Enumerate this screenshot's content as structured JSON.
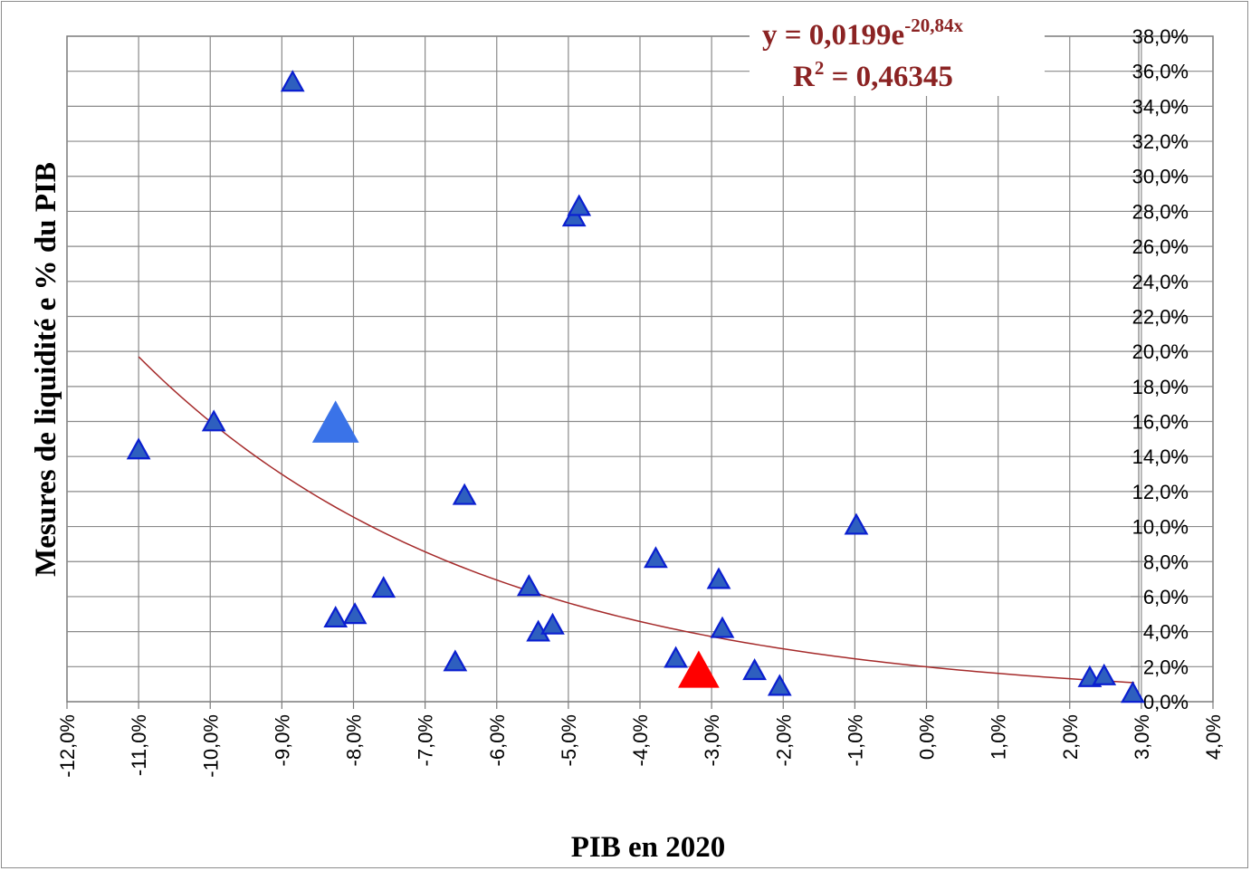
{
  "chart_data": {
    "type": "scatter",
    "xlabel": "PIB en 2020",
    "ylabel": "Mesures de liquidité e % du PIB",
    "xlim": [
      -0.12,
      0.04
    ],
    "ylim": [
      0,
      0.38
    ],
    "x_ticks": [
      "-12,0%",
      "-11,0%",
      "-10,0%",
      "-9,0%",
      "-8,0%",
      "-7,0%",
      "-6,0%",
      "-5,0%",
      "-4,0%",
      "-3,0%",
      "-2,0%",
      "-1,0%",
      "0,0%",
      "1,0%",
      "2,0%",
      "3,0%",
      "4,0%"
    ],
    "y_ticks": [
      "0,0%",
      "2,0%",
      "4,0%",
      "6,0%",
      "8,0%",
      "10,0%",
      "12,0%",
      "14,0%",
      "16,0%",
      "18,0%",
      "20,0%",
      "22,0%",
      "24,0%",
      "26,0%",
      "28,0%",
      "30,0%",
      "32,0%",
      "34,0%",
      "36,0%",
      "38,0%"
    ],
    "y_axis_side": "right",
    "grid": true,
    "colors": {
      "points": "#2e5fbf",
      "point_edge": "#0a1fd0",
      "highlight_large": "#3a73e8",
      "highlight_red": "#ff0000",
      "trendline": "#a52a2a",
      "equation": "#8b2323"
    },
    "series": [
      {
        "points": [
          {
            "x": -0.11,
            "y": 0.143
          },
          {
            "x": -0.0995,
            "y": 0.159
          },
          {
            "x": -0.0885,
            "y": 0.353
          },
          {
            "x": -0.0825,
            "y": 0.047
          },
          {
            "x": -0.0798,
            "y": 0.049
          },
          {
            "x": -0.0758,
            "y": 0.064
          },
          {
            "x": -0.0658,
            "y": 0.022
          },
          {
            "x": -0.0645,
            "y": 0.117
          },
          {
            "x": -0.0555,
            "y": 0.065
          },
          {
            "x": -0.0542,
            "y": 0.039
          },
          {
            "x": -0.0522,
            "y": 0.043
          },
          {
            "x": -0.0492,
            "y": 0.276
          },
          {
            "x": -0.0485,
            "y": 0.282
          },
          {
            "x": -0.0378,
            "y": 0.081
          },
          {
            "x": -0.035,
            "y": 0.024
          },
          {
            "x": -0.029,
            "y": 0.069
          },
          {
            "x": -0.0285,
            "y": 0.041
          },
          {
            "x": -0.024,
            "y": 0.017
          },
          {
            "x": -0.0205,
            "y": 0.008
          },
          {
            "x": -0.0098,
            "y": 0.1
          },
          {
            "x": 0.0228,
            "y": 0.013
          },
          {
            "x": 0.0248,
            "y": 0.014
          },
          {
            "x": 0.0288,
            "y": 0.004
          }
        ]
      },
      {
        "highlight": "large-blue",
        "points": [
          {
            "x": -0.0825,
            "y": 0.157
          }
        ]
      },
      {
        "highlight": "red",
        "points": [
          {
            "x": -0.0318,
            "y": 0.016
          }
        ]
      }
    ],
    "trendline": {
      "type": "exponential",
      "a": 0.0199,
      "b": -20.84,
      "x_range": [
        -0.11,
        0.029
      ],
      "equation_prefix": "y = 0,0199e",
      "equation_exponent": "-20,84x",
      "r2_prefix": "R",
      "r2_sup": "2",
      "r2_value": " = 0,46345"
    }
  }
}
